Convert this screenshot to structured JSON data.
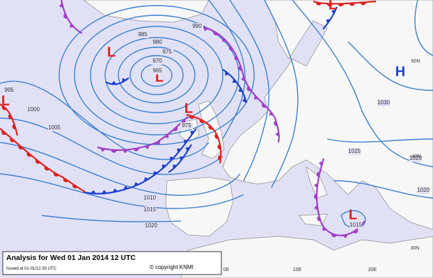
{
  "pressure_centres": [
    {
      "label": "L",
      "kind": "low"
    },
    {
      "label": "L",
      "kind": "low"
    },
    {
      "label": "L",
      "kind": "low"
    },
    {
      "label": "L",
      "kind": "low"
    },
    {
      "label": "L",
      "kind": "low"
    },
    {
      "label": "L",
      "kind": "low"
    },
    {
      "label": "H",
      "kind": "high"
    }
  ],
  "isobar_labels": [
    "985",
    "980",
    "975",
    "970",
    "965",
    "990",
    "995",
    "1000",
    "1005",
    "1010",
    "1015",
    "1020",
    "975",
    "1030",
    "1025",
    "1020",
    "1020",
    "1015"
  ],
  "grid_labels": [
    "50N",
    "40N",
    "30N",
    "0E",
    "10E",
    "20E"
  ],
  "footer": {
    "title": "Analysis for Wed 01 Jan 2014 12 UTC",
    "issued": "Issued at 01-01/12.30 UTC",
    "copyright": "© copyright KNMI"
  }
}
